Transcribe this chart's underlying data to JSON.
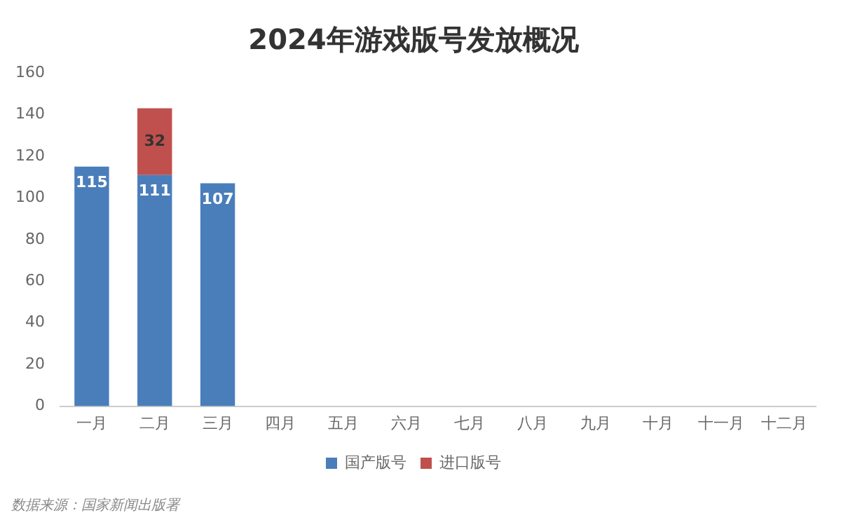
{
  "chart_data": {
    "type": "bar",
    "title": "2024年游戏版号发放概况",
    "categories": [
      "一月",
      "二月",
      "三月",
      "四月",
      "五月",
      "六月",
      "七月",
      "八月",
      "九月",
      "十月",
      "十一月",
      "十二月"
    ],
    "series": [
      {
        "name": "国产版号",
        "color": "#4a7ebb",
        "values": [
          115,
          111,
          107,
          null,
          null,
          null,
          null,
          null,
          null,
          null,
          null,
          null
        ]
      },
      {
        "name": "进口版号",
        "color": "#c0504d",
        "values": [
          null,
          32,
          null,
          null,
          null,
          null,
          null,
          null,
          null,
          null,
          null,
          null
        ]
      }
    ],
    "stacked": true,
    "data_labels": true,
    "ylim": [
      0,
      160
    ],
    "yticks": [
      0,
      20,
      40,
      60,
      80,
      100,
      120,
      140,
      160
    ],
    "grid": false,
    "legend": "bottom",
    "annotations": [
      "数据来源：国家新闻出版署"
    ]
  }
}
